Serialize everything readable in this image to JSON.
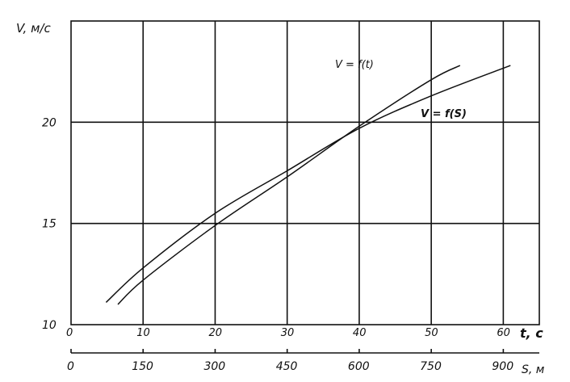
{
  "chart_data": {
    "type": "line",
    "title": "",
    "ylabel": "V, м/с",
    "xlabel_t": "t, c",
    "xlabel_s": "S, м",
    "ylim": [
      10,
      25
    ],
    "xlim_t": [
      0,
      65
    ],
    "xlim_s": [
      0,
      975
    ],
    "y_ticks": [
      "10",
      "15",
      "20"
    ],
    "t_ticks": [
      "0",
      "10",
      "20",
      "30",
      "40",
      "50",
      "60"
    ],
    "s_ticks": [
      "0",
      "150",
      "300",
      "450",
      "600",
      "750",
      "900"
    ],
    "grid": true,
    "series": [
      {
        "name": "V = f(t)",
        "axis": "t",
        "x": [
          6.5,
          10,
          20,
          30,
          40,
          50,
          54
        ],
        "y": [
          11.0,
          12.2,
          14.9,
          17.3,
          19.8,
          22.1,
          22.8
        ]
      },
      {
        "name": "V = f(S)",
        "axis": "S",
        "x": [
          73,
          150,
          300,
          450,
          600,
          750,
          915
        ],
        "y": [
          11.1,
          12.8,
          15.5,
          17.6,
          19.7,
          21.3,
          22.8
        ]
      }
    ]
  }
}
